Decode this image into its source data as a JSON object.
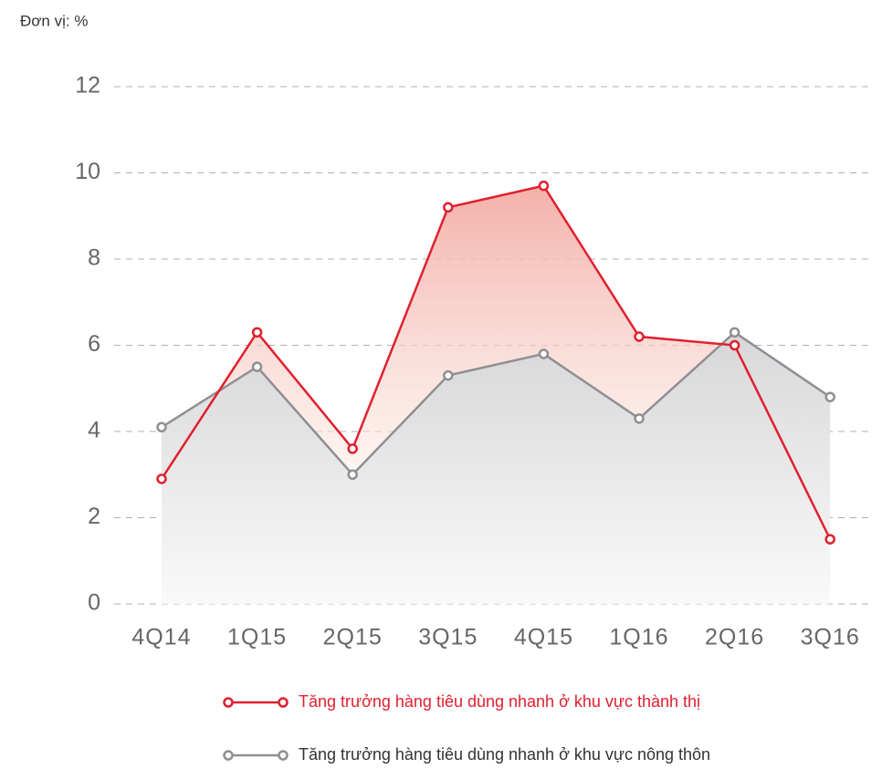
{
  "chart_data": {
    "type": "line",
    "unit_label": "Đơn vị: %",
    "categories": [
      "4Q14",
      "1Q15",
      "2Q15",
      "3Q15",
      "4Q15",
      "1Q16",
      "2Q16",
      "3Q16"
    ],
    "series": [
      {
        "name": "Tăng trưởng hàng tiêu dùng nhanh ở khu vực thành thị",
        "color": "#e0202e",
        "values": [
          2.9,
          6.3,
          3.6,
          9.2,
          9.7,
          6.2,
          6.0,
          1.5
        ]
      },
      {
        "name": "Tăng trưởng hàng tiêu dùng nhanh ở khu vực nông thôn",
        "color": "#8f8f93",
        "values": [
          4.1,
          5.5,
          3.0,
          5.3,
          5.8,
          4.3,
          6.3,
          4.8
        ]
      }
    ],
    "ylim": [
      0,
      12
    ],
    "yticks": [
      0,
      2,
      4,
      6,
      8,
      10,
      12
    ],
    "grid": true
  }
}
